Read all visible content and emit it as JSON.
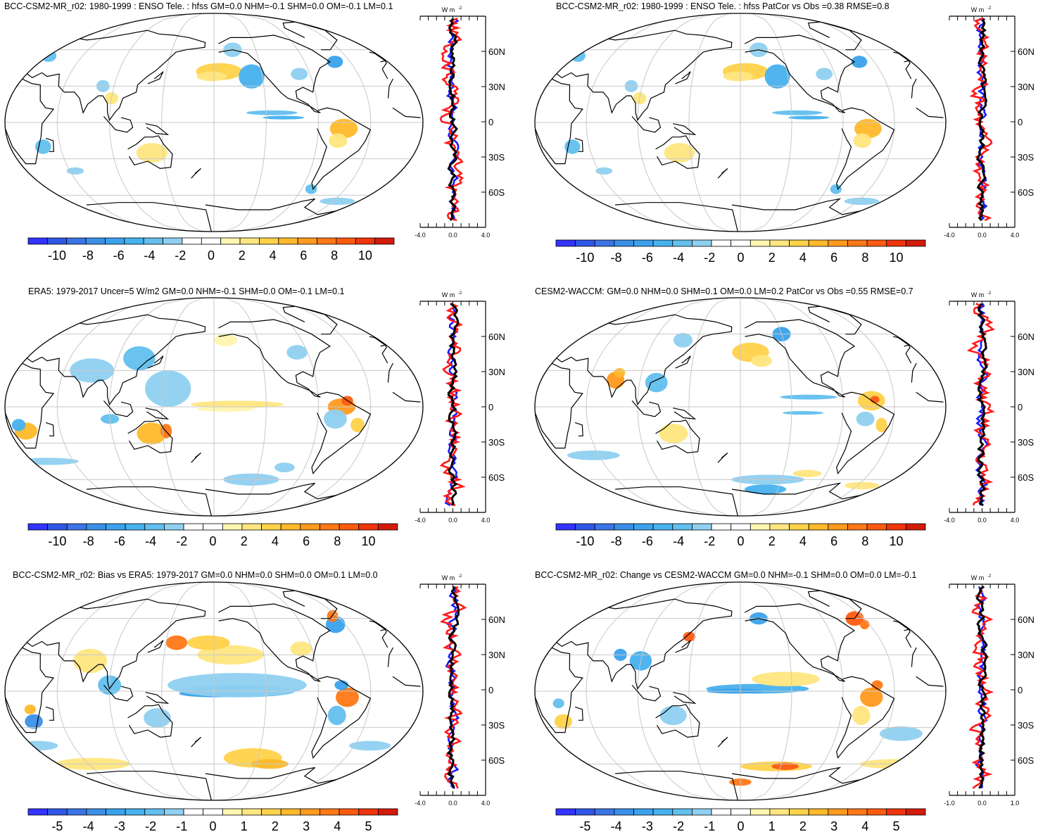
{
  "colormap": [
    "#3333ff",
    "#2f56e6",
    "#3b74e6",
    "#3b8fe8",
    "#3aa2ec",
    "#47b1ee",
    "#62bfee",
    "#8fd0f0",
    "#ffffff",
    "#ffffff",
    "#fff6b0",
    "#ffe680",
    "#ffd24a",
    "#ffb92a",
    "#ff9a1e",
    "#ff7816",
    "#ff5a10",
    "#f0340c",
    "#d41a0a"
  ],
  "ocean_color": "#ffffff",
  "coast_color": "#000000",
  "grid_color": "#c8c8c8",
  "zonal_series_colors": {
    "ocean": "#ff1a1a",
    "land": "#1a1aff",
    "global": "#000000"
  },
  "panels": [
    {
      "id": "p1",
      "title": "BCC-CSM2-MR_r02: 1980-1999 : ENSO Tele. : hfss GM=0.0 NHM=-0.1 SHM=0.0 OM=-0.1 LM=0.1",
      "colorbar_ticks": [
        "-10",
        "-8",
        "-6",
        "-4",
        "-2",
        "0",
        "2",
        "4",
        "6",
        "8",
        "10"
      ],
      "zonal": {
        "unit": "W m",
        "unit_sup": "-2",
        "lat_labels": [
          "60N",
          "30N",
          "0",
          "30S",
          "60S"
        ],
        "x_ticks": [
          "-4.0",
          "0.0",
          "4.0"
        ],
        "xlim": [
          -4,
          4
        ]
      }
    },
    {
      "id": "p2",
      "title": "BCC-CSM2-MR_r02: 1980-1999 : ENSO Tele. : hfss PatCor vs Obs =0.38 RMSE=0.8",
      "colorbar_ticks": [
        "-10",
        "-8",
        "-6",
        "-4",
        "-2",
        "0",
        "2",
        "4",
        "6",
        "8",
        "10"
      ],
      "zonal": {
        "unit": "W m",
        "unit_sup": "-2",
        "lat_labels": [
          "60N",
          "30N",
          "0",
          "30S",
          "60S"
        ],
        "x_ticks": [
          "-4.0",
          "0.0",
          "4.0"
        ],
        "xlim": [
          -4,
          4
        ]
      }
    },
    {
      "id": "p3",
      "title": "ERA5: 1979-2017 Uncer=5 W/m2 GM=0.0 NHM=-0.1 SHM=0.0 OM=-0.1 LM=0.1",
      "colorbar_ticks": [
        "-10",
        "-8",
        "-6",
        "-4",
        "-2",
        "0",
        "2",
        "4",
        "6",
        "8",
        "10"
      ],
      "zonal": {
        "unit": "W m",
        "unit_sup": "-2",
        "lat_labels": [
          "60N",
          "30N",
          "0",
          "30S",
          "60S"
        ],
        "x_ticks": [
          "-4.0",
          "0.0",
          "4.0"
        ],
        "xlim": [
          -4,
          4
        ]
      }
    },
    {
      "id": "p4",
      "title": "CESM2-WACCM: GM=0.0 NHM=0.0 SHM=0.1 OM=0.0 LM=0.2 PatCor vs Obs =0.55 RMSE=0.7",
      "colorbar_ticks": [
        "-10",
        "-8",
        "-6",
        "-4",
        "-2",
        "0",
        "2",
        "4",
        "6",
        "8",
        "10"
      ],
      "zonal": {
        "unit": "W m",
        "unit_sup": "-2",
        "lat_labels": [
          "60N",
          "30N",
          "0",
          "30S",
          "60S"
        ],
        "x_ticks": [
          "-4.0",
          "0.0",
          "4.0"
        ],
        "xlim": [
          -4,
          4
        ]
      }
    },
    {
      "id": "p5",
      "title": "BCC-CSM2-MR_r02: Bias vs ERA5: 1979-2017 GM=0.0 NHM=0.0 SHM=0.0 OM=0.1 LM=0.0",
      "colorbar_ticks": [
        "-5",
        "-4",
        "-3",
        "-2",
        "-1",
        "0",
        "1",
        "2",
        "3",
        "4",
        "5"
      ],
      "zonal": {
        "unit": "W m",
        "unit_sup": "-2",
        "lat_labels": [
          "60N",
          "30N",
          "0",
          "30S",
          "60S"
        ],
        "x_ticks": [
          "-4.0",
          "0.0",
          "4.0"
        ],
        "xlim": [
          -4,
          4
        ]
      }
    },
    {
      "id": "p6",
      "title": "BCC-CSM2-MR_r02: Change vs CESM2-WACCM GM=0.0 NHM=-0.1 SHM=0.0 OM=0.0 LM=-0.1",
      "colorbar_ticks": [
        "-5",
        "-4",
        "-3",
        "-2",
        "-1",
        "0",
        "1",
        "2",
        "3",
        "4",
        "5"
      ],
      "zonal": {
        "unit": "W m",
        "unit_sup": "-2",
        "lat_labels": [
          "60N",
          "30N",
          "0",
          "30S",
          "60S"
        ],
        "x_ticks": [
          "-1.0",
          "0.0",
          "1.0"
        ],
        "xlim": [
          -1,
          1
        ]
      }
    }
  ]
}
